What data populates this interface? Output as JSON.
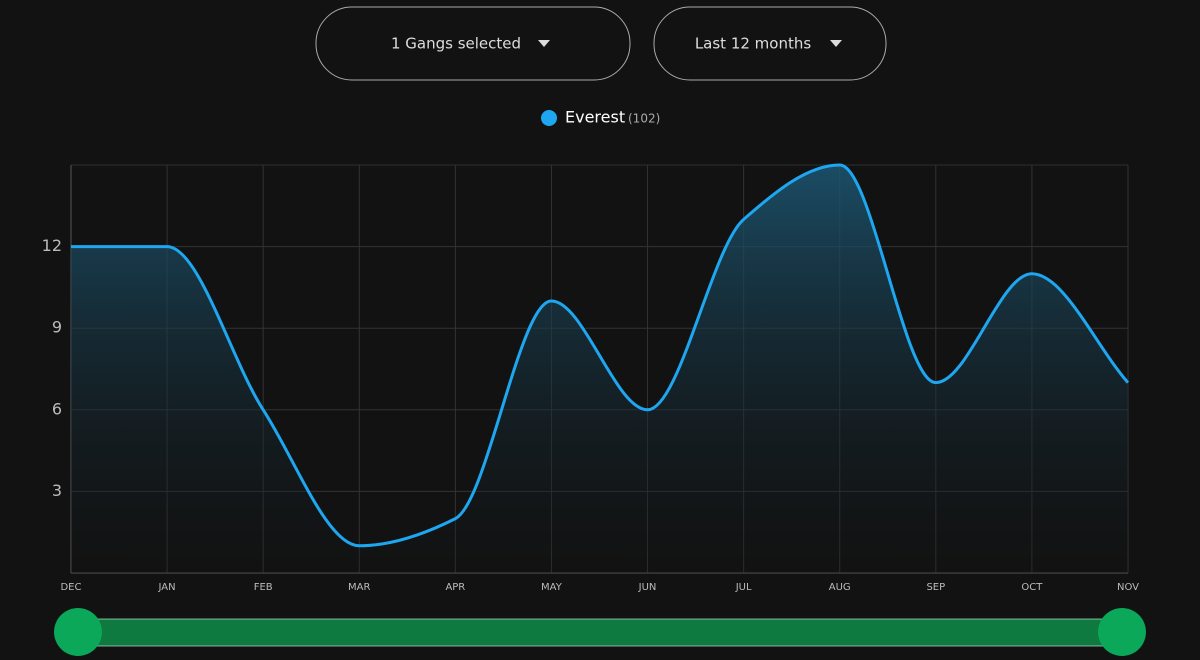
{
  "controls": {
    "gangs": "1 Gangs selected",
    "period": "Last 12 months"
  },
  "chart_data": {
    "type": "area",
    "categories": [
      "DEC",
      "JAN",
      "FEB",
      "MAR",
      "APR",
      "MAY",
      "JUN",
      "JUL",
      "AUG",
      "SEP",
      "OCT",
      "NOV"
    ],
    "series": [
      {
        "name": "Everest",
        "count_label": "(102)",
        "color": "#1ea7f0",
        "values": [
          12,
          12,
          6,
          1,
          2,
          10,
          6,
          13,
          15,
          7,
          11,
          7
        ]
      }
    ],
    "ylim": [
      0,
      15
    ],
    "yticks": [
      3,
      6,
      9,
      12
    ],
    "grid": true
  }
}
